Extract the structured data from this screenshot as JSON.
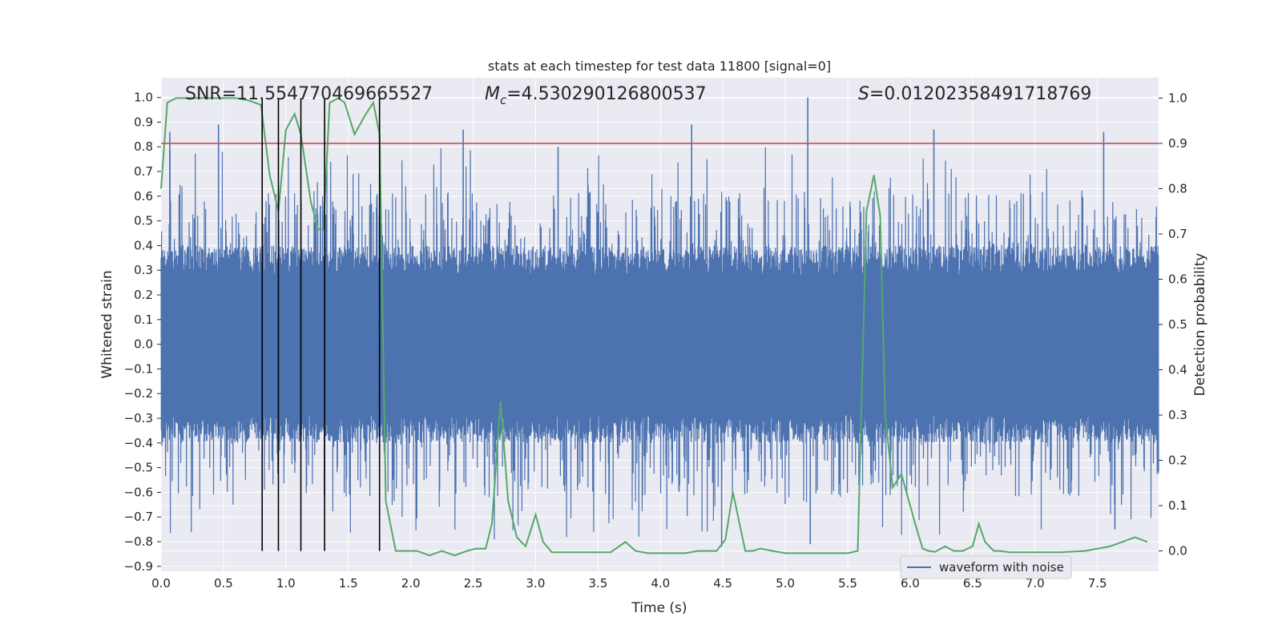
{
  "chart_data": {
    "type": "line",
    "title": "stats at each timestep for test data 11800 [signal=0]",
    "xlabel": "Time (s)",
    "ylabel_left": "Whitened strain",
    "ylabel_right": "Detection probability",
    "xlim": [
      0,
      7.99
    ],
    "ylim_left": [
      -0.92,
      1.08
    ],
    "ylim_right": [
      -0.045,
      1.045
    ],
    "x_ticks": [
      "0.0",
      "0.5",
      "1.0",
      "1.5",
      "2.0",
      "2.5",
      "3.0",
      "3.5",
      "4.0",
      "4.5",
      "5.0",
      "5.5",
      "6.0",
      "6.5",
      "7.0",
      "7.5"
    ],
    "y_ticks_left": [
      "1.0",
      "0.9",
      "0.8",
      "0.7",
      "0.6",
      "0.5",
      "0.4",
      "0.3",
      "0.2",
      "0.1",
      "0.0",
      "−0.1",
      "−0.2",
      "−0.3",
      "−0.4",
      "−0.5",
      "−0.6",
      "−0.7",
      "−0.8",
      "−0.9"
    ],
    "y_ticks_right": [
      "1.0",
      "0.9",
      "0.8",
      "0.7",
      "0.6",
      "0.5",
      "0.4",
      "0.3",
      "0.2",
      "0.1",
      "0.0"
    ],
    "grid": true,
    "legend_position": "lower-right",
    "annotations": {
      "snr": "SNR=11.554770469665527",
      "mc_symbol": "M",
      "mc_sub": "c",
      "mc_value": "=4.530290126800537",
      "s_symbol": "S",
      "s_value": "=0.01202358491718769"
    },
    "threshold": {
      "value": 0.9,
      "axis": "right",
      "color": "#c44e52"
    },
    "vertical_markers": {
      "x": [
        0.81,
        0.94,
        1.12,
        1.31,
        1.75
      ],
      "color": "#000000"
    },
    "series": [
      {
        "name": "waveform with noise",
        "axis": "left",
        "color": "#4c72b0",
        "description_envelope": "dense noise, core band about ±0.3, peaks up to 1.0, troughs down to −0.82",
        "sample_peaks": [
          {
            "x": 0.07,
            "y": 0.86
          },
          {
            "x": 0.46,
            "y": 0.89
          },
          {
            "x": 2.42,
            "y": 0.87
          },
          {
            "x": 3.18,
            "y": 0.8
          },
          {
            "x": 4.25,
            "y": 0.89
          },
          {
            "x": 5.18,
            "y": 1.0
          },
          {
            "x": 6.19,
            "y": 0.87
          },
          {
            "x": 7.55,
            "y": 0.86
          },
          {
            "x": 4.49,
            "y": -0.82
          },
          {
            "x": 5.2,
            "y": -0.81
          },
          {
            "x": 7.64,
            "y": -0.75
          }
        ]
      },
      {
        "name": "",
        "axis": "right",
        "color": "#55a868",
        "x": [
          0.0,
          0.05,
          0.12,
          0.2,
          0.3,
          0.4,
          0.5,
          0.6,
          0.7,
          0.8,
          0.87,
          0.94,
          1.0,
          1.07,
          1.12,
          1.2,
          1.26,
          1.3,
          1.35,
          1.42,
          1.47,
          1.55,
          1.63,
          1.7,
          1.75,
          1.8,
          1.88,
          1.95,
          2.05,
          2.15,
          2.25,
          2.35,
          2.45,
          2.52,
          2.6,
          2.65,
          2.72,
          2.78,
          2.85,
          2.92,
          3.0,
          3.06,
          3.13,
          3.2,
          3.3,
          3.4,
          3.5,
          3.6,
          3.72,
          3.8,
          3.9,
          4.0,
          4.1,
          4.2,
          4.3,
          4.35,
          4.45,
          4.52,
          4.58,
          4.63,
          4.68,
          4.74,
          4.8,
          4.9,
          5.0,
          5.1,
          5.2,
          5.3,
          5.4,
          5.5,
          5.58,
          5.65,
          5.71,
          5.76,
          5.8,
          5.86,
          5.93,
          5.98,
          6.04,
          6.1,
          6.15,
          6.2,
          6.28,
          6.35,
          6.42,
          6.5,
          6.55,
          6.6,
          6.67,
          6.72,
          6.8,
          6.9,
          7.0,
          7.2,
          7.4,
          7.6,
          7.7,
          7.8,
          7.9
        ],
        "y": [
          0.8,
          0.99,
          1.0,
          1.0,
          1.0,
          1.0,
          1.0,
          1.0,
          0.995,
          0.985,
          0.83,
          0.75,
          0.93,
          0.965,
          0.92,
          0.77,
          0.71,
          0.71,
          0.99,
          1.0,
          0.99,
          0.92,
          0.96,
          0.99,
          0.92,
          0.11,
          0.0,
          0.0,
          0.0,
          -0.01,
          0.0,
          -0.01,
          0.0,
          0.005,
          0.005,
          0.06,
          0.33,
          0.11,
          0.03,
          0.01,
          0.08,
          0.02,
          -0.003,
          -0.003,
          -0.003,
          -0.003,
          -0.003,
          -0.003,
          0.02,
          0.0,
          -0.005,
          -0.005,
          -0.005,
          -0.005,
          0.0,
          0.0,
          0.0,
          0.025,
          0.13,
          0.065,
          0.0,
          0.0,
          0.005,
          0.0,
          -0.005,
          -0.005,
          -0.005,
          -0.005,
          -0.005,
          -0.005,
          0.0,
          0.75,
          0.83,
          0.74,
          0.3,
          0.14,
          0.17,
          0.12,
          0.06,
          0.005,
          0.0,
          -0.002,
          0.01,
          0.0,
          0.0,
          0.01,
          0.06,
          0.02,
          0.0,
          0.0,
          -0.003,
          -0.003,
          -0.003,
          -0.003,
          0.0,
          0.01,
          0.02,
          0.03,
          0.02
        ]
      }
    ]
  }
}
